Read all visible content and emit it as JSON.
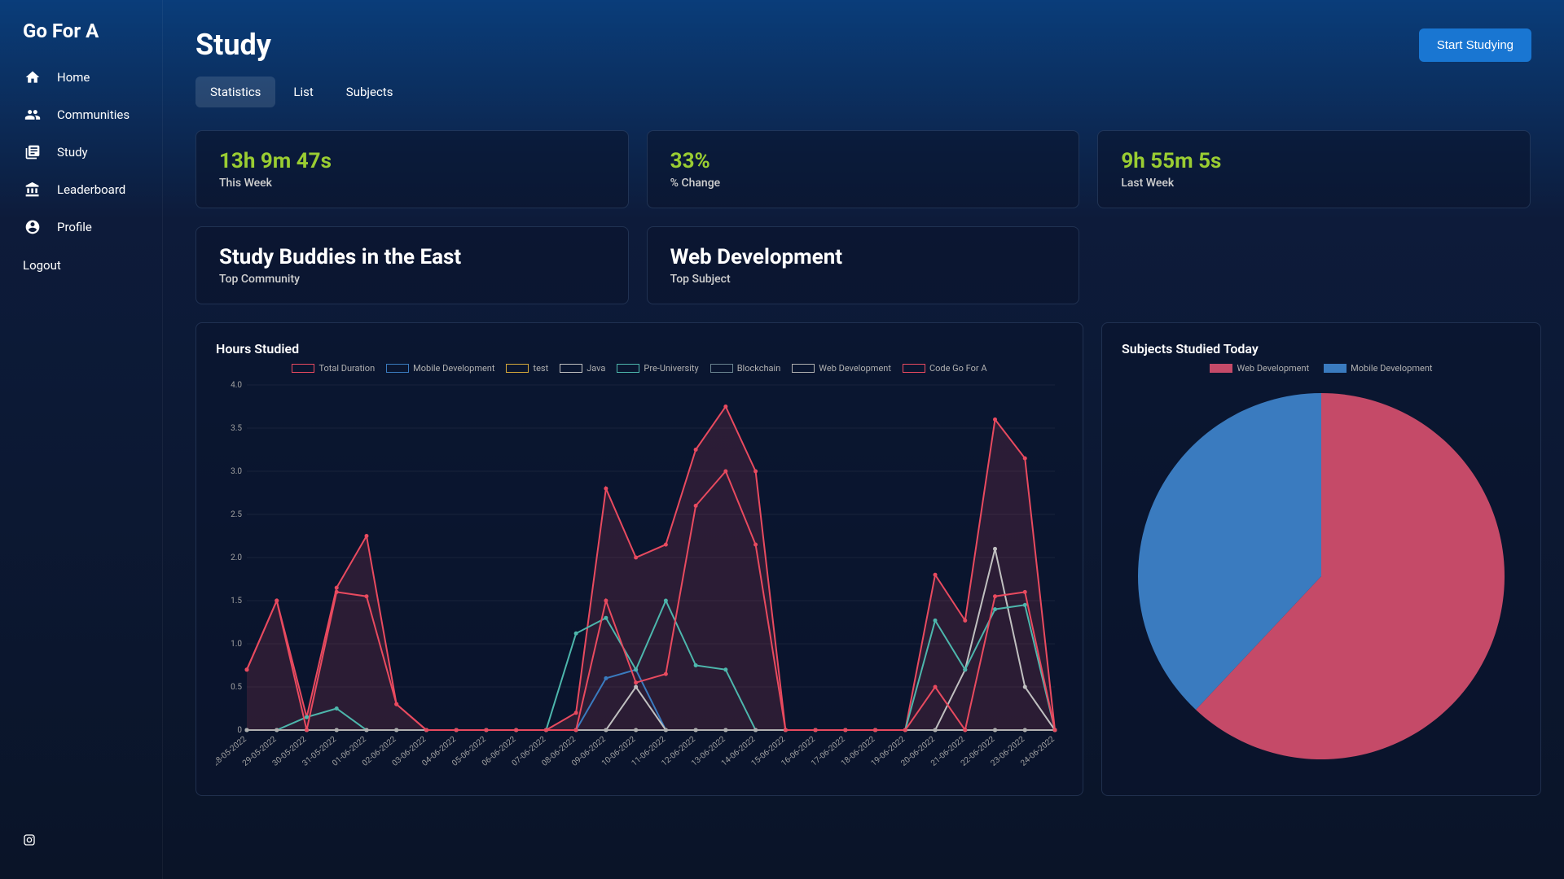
{
  "app": {
    "name": "Go For A"
  },
  "sidebar": {
    "items": [
      {
        "label": "Home",
        "icon": "home"
      },
      {
        "label": "Communities",
        "icon": "group"
      },
      {
        "label": "Study",
        "icon": "book"
      },
      {
        "label": "Leaderboard",
        "icon": "bank"
      },
      {
        "label": "Profile",
        "icon": "account"
      }
    ],
    "logout": "Logout"
  },
  "header": {
    "title": "Study",
    "cta": "Start Studying"
  },
  "tabs": [
    {
      "label": "Statistics",
      "active": true
    },
    {
      "label": "List",
      "active": false
    },
    {
      "label": "Subjects",
      "active": false
    }
  ],
  "stats": {
    "thisWeek": {
      "value": "13h 9m 47s",
      "label": "This Week"
    },
    "change": {
      "value": "33%",
      "label": "% Change"
    },
    "lastWeek": {
      "value": "9h 55m 5s",
      "label": "Last Week"
    },
    "topCommunity": {
      "value": "Study Buddies in the East",
      "label": "Top Community"
    },
    "topSubject": {
      "value": "Web Development",
      "label": "Top Subject"
    }
  },
  "lineChart": {
    "title": "Hours Studied",
    "type": "line",
    "background": "#0a1530",
    "grid_color": "rgba(255,255,255,0.06)",
    "text_color": "#a0a0a0",
    "font_size": 10,
    "ylim": [
      0,
      4.0
    ],
    "ytick_step": 0.5,
    "yticks": [
      "0",
      "0.5",
      "1.0",
      "1.5",
      "2.0",
      "2.5",
      "3.0",
      "3.5",
      "4.0"
    ],
    "xlabels": [
      "28-05-2022",
      "29-05-2022",
      "30-05-2022",
      "31-05-2022",
      "01-06-2022",
      "02-06-2022",
      "03-06-2022",
      "04-06-2022",
      "05-06-2022",
      "06-06-2022",
      "07-06-2022",
      "08-06-2022",
      "09-06-2022",
      "10-06-2022",
      "11-06-2022",
      "12-06-2022",
      "13-06-2022",
      "14-06-2022",
      "15-06-2022",
      "16-06-2022",
      "17-06-2022",
      "18-06-2022",
      "19-06-2022",
      "20-06-2022",
      "21-06-2022",
      "22-06-2022",
      "23-06-2022",
      "24-06-2022"
    ],
    "series": [
      {
        "name": "Total Duration",
        "color": "#e84a5f",
        "fill": "rgba(232,74,95,0.15)",
        "data": [
          0.7,
          1.5,
          0.15,
          1.65,
          2.25,
          0.3,
          0,
          0,
          0,
          0,
          0,
          0.2,
          2.8,
          2.0,
          2.15,
          3.25,
          3.75,
          3.0,
          0,
          0,
          0,
          0,
          0,
          1.8,
          1.27,
          3.6,
          3.15,
          0
        ]
      },
      {
        "name": "Mobile Development",
        "color": "#3a7bbf",
        "fill": "none",
        "data": [
          0,
          0,
          0,
          0,
          0,
          0,
          0,
          0,
          0,
          0,
          0,
          0,
          0.6,
          0.7,
          0,
          0,
          0,
          0,
          0,
          0,
          0,
          0,
          0,
          0,
          0,
          0,
          0,
          0
        ]
      },
      {
        "name": "test",
        "color": "#d4a93a",
        "fill": "none",
        "data": [
          0,
          0,
          0,
          0,
          0,
          0,
          0,
          0,
          0,
          0,
          0,
          0,
          0,
          0,
          0,
          0,
          0,
          0,
          0,
          0,
          0,
          0,
          0,
          0,
          0,
          0,
          0,
          0
        ]
      },
      {
        "name": "Java",
        "color": "#c0c0c0",
        "fill": "none",
        "data": [
          0,
          0,
          0,
          0,
          0,
          0,
          0,
          0,
          0,
          0,
          0,
          0,
          0,
          0.5,
          0,
          0,
          0,
          0,
          0,
          0,
          0,
          0,
          0,
          0,
          0.7,
          2.1,
          0.5,
          0
        ]
      },
      {
        "name": "Pre-University",
        "color": "#4db6ac",
        "fill": "none",
        "data": [
          0,
          0,
          0.15,
          0.25,
          0,
          0,
          0,
          0,
          0,
          0,
          0,
          1.12,
          1.3,
          0.7,
          1.5,
          0.75,
          0.7,
          0,
          0,
          0,
          0,
          0,
          0,
          1.27,
          0.7,
          1.4,
          1.45,
          0
        ]
      },
      {
        "name": "Blockchain",
        "color": "#6a8490",
        "fill": "none",
        "data": [
          0,
          0,
          0,
          0,
          0,
          0,
          0,
          0,
          0,
          0,
          0,
          0,
          0,
          0,
          0,
          0,
          0,
          0,
          0,
          0,
          0,
          0,
          0,
          0,
          0,
          0,
          0,
          0
        ]
      },
      {
        "name": "Web Development",
        "color": "#b0b0b0",
        "fill": "none",
        "data": [
          0,
          0,
          0,
          0,
          0,
          0,
          0,
          0,
          0,
          0,
          0,
          0,
          0,
          0,
          0,
          0,
          0,
          0,
          0,
          0,
          0,
          0,
          0,
          0,
          0,
          0,
          0,
          0
        ]
      },
      {
        "name": "Code Go For A",
        "color": "#e84a5f",
        "fill": "none",
        "data": [
          0.7,
          1.5,
          0,
          1.6,
          1.55,
          0.3,
          0,
          0,
          0,
          0,
          0,
          0,
          1.5,
          0.55,
          0.65,
          2.6,
          3.0,
          2.15,
          0,
          0,
          0,
          0,
          0,
          0.5,
          0,
          1.55,
          1.6,
          0
        ]
      }
    ]
  },
  "pieChart": {
    "title": "Subjects Studied Today",
    "type": "pie",
    "background": "#0a1530",
    "text_color": "#a0a0a0",
    "slices": [
      {
        "name": "Web Development",
        "value": 62,
        "color": "#c54a68"
      },
      {
        "name": "Mobile Development",
        "value": 38,
        "color": "#3a7bbf"
      }
    ]
  }
}
